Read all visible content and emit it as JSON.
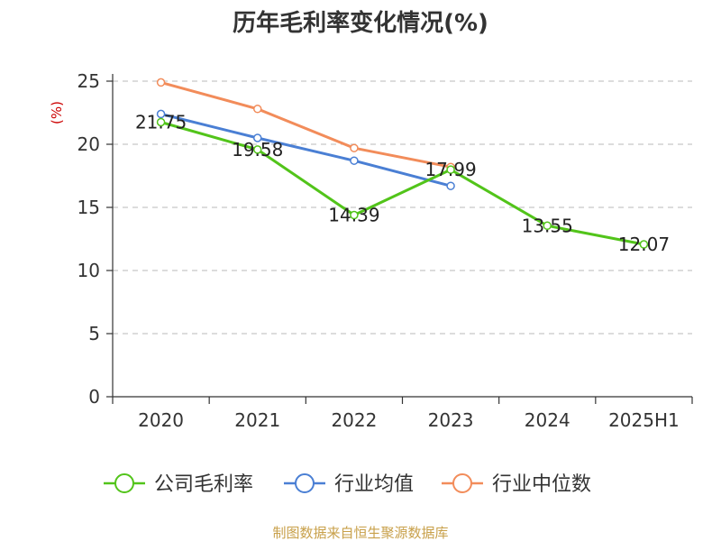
{
  "chart_data": {
    "type": "line",
    "title": "历年毛利率变化情况(%)",
    "ylabel": "(%)",
    "xlabel": "",
    "categories": [
      "2020",
      "2021",
      "2022",
      "2023",
      "2024",
      "2025H1"
    ],
    "ylim": [
      0,
      25
    ],
    "yticks": [
      0,
      5,
      10,
      15,
      20,
      25
    ],
    "grid": true,
    "legend_position": "bottom",
    "series": [
      {
        "name": "公司毛利率",
        "color": "#52c41a",
        "values": [
          21.75,
          19.58,
          14.39,
          17.99,
          13.55,
          12.07
        ],
        "labels": [
          "21.75",
          "19.58",
          "14.39",
          "17.99",
          "13.55",
          "12.07"
        ]
      },
      {
        "name": "行业均值",
        "color": "#4a7fd4",
        "values": [
          22.4,
          20.5,
          18.7,
          16.7,
          null,
          null
        ]
      },
      {
        "name": "行业中位数",
        "color": "#f28c5a",
        "values": [
          24.9,
          22.8,
          19.7,
          18.2,
          null,
          null
        ]
      }
    ]
  },
  "source_text": "制图数据来自恒生聚源数据库"
}
